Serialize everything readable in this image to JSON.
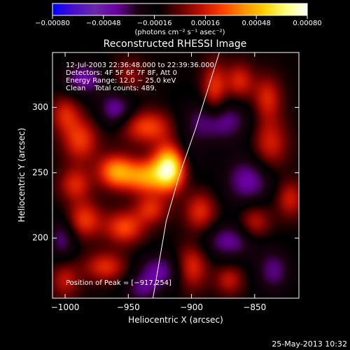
{
  "chart_data": {
    "type": "heatmap",
    "title": "Reconstructed RHESSI Image",
    "xlabel": "Heliocentric X (arcsec)",
    "ylabel": "Heliocentric Y (arcsec)",
    "xlim": [
      -1010,
      -815
    ],
    "ylim": [
      154,
      342
    ],
    "xticks": [
      -1000,
      -950,
      -900,
      -850
    ],
    "yticks": [
      200,
      250,
      300
    ],
    "xtick_labels": [
      "−1000",
      "−950",
      "−900",
      "−850"
    ],
    "ytick_labels": [
      "200",
      "250",
      "300"
    ],
    "colorbar": {
      "range": [
        -0.0008,
        0.0008
      ],
      "ticks": [
        "−0.00080",
        "−0.00048",
        "−0.00016",
        "0.00016",
        "0.00048",
        "0.00080"
      ],
      "unit_label": "(photons cm⁻² s⁻¹ asec⁻²)",
      "colormap": [
        "#0000ff",
        "#4a10c8",
        "#6a2aa8",
        "#6a00a0",
        "#1a0010",
        "#000000",
        "#600000",
        "#c01000",
        "#ff4000",
        "#ff9000",
        "#ffd000",
        "#ffff80",
        "#ffffff"
      ]
    },
    "info_lines": [
      "12-Jul-2003 22:36:48.000 to 22:39:36.000",
      "Detectors: 4F 5F 6F 7F 8F, Att 0",
      "Energy Range: 12.0 − 25.0 keV",
      "Clean    Total counts: 489."
    ],
    "peak_label": "Position of Peak = [−917,254]",
    "peak": {
      "x": -917,
      "y": 254,
      "value": 0.0008
    },
    "sources": [
      {
        "x": -917,
        "y": 254,
        "sx": 9,
        "sy": 12,
        "amp": 0.00085
      },
      {
        "x": -937,
        "y": 247,
        "sx": 12,
        "sy": 9,
        "amp": 0.0005
      },
      {
        "x": -960,
        "y": 251,
        "sx": 10,
        "sy": 9,
        "amp": 0.0005
      },
      {
        "x": -935,
        "y": 285,
        "sx": 15,
        "sy": 9,
        "amp": 0.00038
      },
      {
        "x": -988,
        "y": 275,
        "sx": 10,
        "sy": 12,
        "amp": 0.00035
      },
      {
        "x": -992,
        "y": 241,
        "sx": 9,
        "sy": 9,
        "amp": 0.0003
      },
      {
        "x": -985,
        "y": 214,
        "sx": 10,
        "sy": 10,
        "amp": 0.00035
      },
      {
        "x": -953,
        "y": 208,
        "sx": 11,
        "sy": 9,
        "amp": 0.00038
      },
      {
        "x": -932,
        "y": 222,
        "sx": 9,
        "sy": 8,
        "amp": 0.0003
      },
      {
        "x": -968,
        "y": 178,
        "sx": 12,
        "sy": 8,
        "amp": 0.00032
      },
      {
        "x": -900,
        "y": 178,
        "sx": 9,
        "sy": 12,
        "amp": 0.00035
      },
      {
        "x": -893,
        "y": 220,
        "sx": 9,
        "sy": 11,
        "amp": 0.00032
      },
      {
        "x": -882,
        "y": 313,
        "sx": 7,
        "sy": 15,
        "amp": 0.00035
      },
      {
        "x": -862,
        "y": 320,
        "sx": 8,
        "sy": 10,
        "amp": 0.0003
      },
      {
        "x": -840,
        "y": 307,
        "sx": 8,
        "sy": 12,
        "amp": 0.0003
      },
      {
        "x": -838,
        "y": 272,
        "sx": 10,
        "sy": 14,
        "amp": 0.0003
      },
      {
        "x": -850,
        "y": 212,
        "sx": 9,
        "sy": 10,
        "amp": 0.00028
      },
      {
        "x": -822,
        "y": 230,
        "sx": 8,
        "sy": 10,
        "amp": 0.00028
      },
      {
        "x": -870,
        "y": 168,
        "sx": 8,
        "sy": 8,
        "amp": 0.00025
      },
      {
        "x": -1000,
        "y": 295,
        "sx": 8,
        "sy": 10,
        "amp": 0.00028
      },
      {
        "x": -1000,
        "y": 168,
        "sx": 8,
        "sy": 10,
        "amp": 0.00025
      },
      {
        "x": -950,
        "y": 325,
        "sx": 10,
        "sy": 9,
        "amp": 0.00018
      },
      {
        "x": -985,
        "y": 322,
        "sx": 12,
        "sy": 9,
        "amp": -0.0003
      },
      {
        "x": -960,
        "y": 298,
        "sx": 10,
        "sy": 10,
        "amp": -0.0003
      },
      {
        "x": -905,
        "y": 262,
        "sx": 10,
        "sy": 16,
        "amp": -0.00015
      },
      {
        "x": -880,
        "y": 290,
        "sx": 18,
        "sy": 12,
        "amp": -0.00032
      },
      {
        "x": -855,
        "y": 244,
        "sx": 14,
        "sy": 14,
        "amp": -0.0003
      },
      {
        "x": -870,
        "y": 198,
        "sx": 16,
        "sy": 10,
        "amp": -0.00028
      },
      {
        "x": -925,
        "y": 175,
        "sx": 14,
        "sy": 10,
        "amp": -0.00028
      },
      {
        "x": -1002,
        "y": 200,
        "sx": 8,
        "sy": 12,
        "amp": -0.00025
      },
      {
        "x": -940,
        "y": 160,
        "sx": 10,
        "sy": 8,
        "amp": -0.0002
      },
      {
        "x": -835,
        "y": 175,
        "sx": 10,
        "sy": 12,
        "amp": -0.00025
      }
    ],
    "limb_curve": [
      {
        "x": -930.5,
        "y": 154
      },
      {
        "x": -920,
        "y": 213
      },
      {
        "x": -910,
        "y": 247
      },
      {
        "x": -897,
        "y": 283
      },
      {
        "x": -878,
        "y": 342
      }
    ]
  },
  "date_stamp": "25-May-2013 10:32"
}
